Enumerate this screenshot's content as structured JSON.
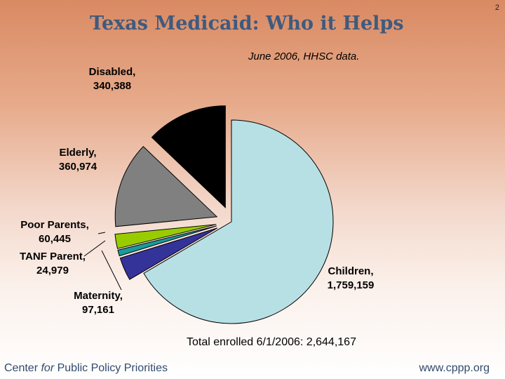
{
  "page_number": "2",
  "title": "Texas Medicaid: Who it Helps",
  "subtitle": "June 2006, HHSC data.",
  "total": "Total enrolled 6/1/2006: 2,644,167",
  "footer": {
    "left_before": "Center ",
    "left_italic": "for",
    "left_after": " Public Policy Priorities",
    "right": "www.cppp.org"
  },
  "chart_data": {
    "type": "pie",
    "title": "Texas Medicaid: Who it Helps",
    "total": 2644167,
    "slices": [
      {
        "name": "Children",
        "value": 1759159,
        "value_label": "1,759,159",
        "color": "#b7e0e5",
        "exploded": false
      },
      {
        "name": "Maternity",
        "value": 97161,
        "value_label": "97,161",
        "color": "#333399",
        "exploded": true
      },
      {
        "name": "TANF Parent",
        "value": 24979,
        "value_label": "24,979",
        "color": "#1a9a9a",
        "exploded": true
      },
      {
        "name": "Poor Parents",
        "value": 60445,
        "value_label": "60,445",
        "color": "#99cc00",
        "exploded": true
      },
      {
        "name": "Elderly",
        "value": 360974,
        "value_label": "360,974",
        "color": "#808080",
        "exploded": true
      },
      {
        "name": "Disabled",
        "value": 340388,
        "value_label": "340,388",
        "color": "#000000",
        "exploded": true
      }
    ]
  }
}
